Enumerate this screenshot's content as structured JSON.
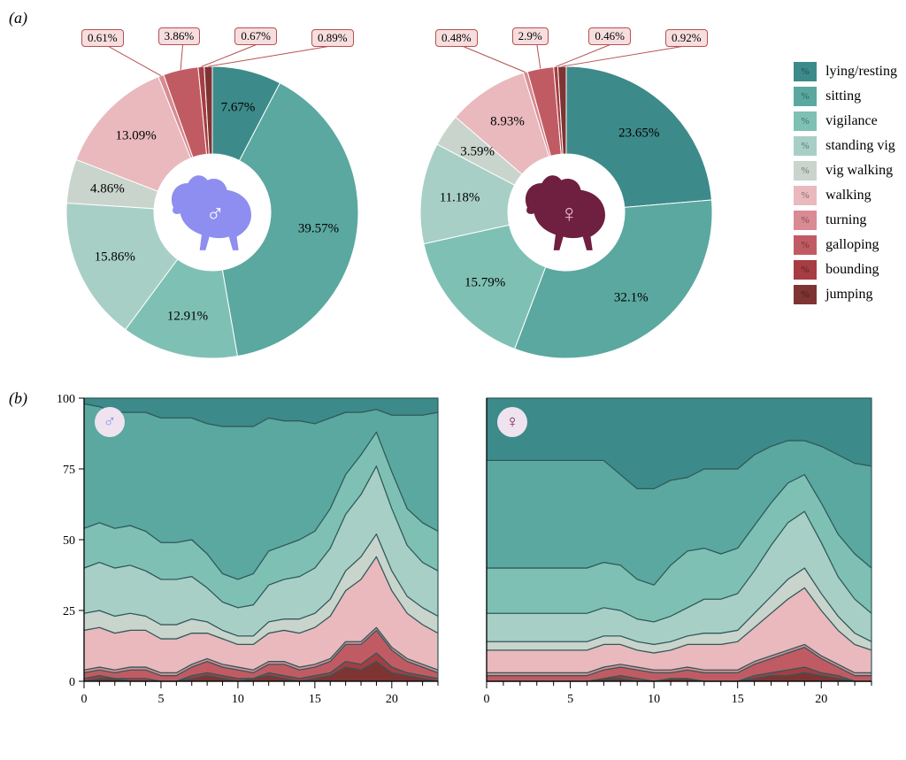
{
  "panel_labels": {
    "a": "(a)",
    "b": "(b)"
  },
  "colors": {
    "lying_resting": "#3d8a8a",
    "sitting": "#5aa8a0",
    "vigilance": "#7fc0b5",
    "standing_vig": "#a7cfc6",
    "vig_walking": "#c9d4cd",
    "walking": "#e9b9bd",
    "turning": "#d98a93",
    "galloping": "#c15b63",
    "bounding": "#a63d42",
    "jumping": "#7e3433",
    "stroke": "#2f5a5a",
    "callout_bg": "#f7dede",
    "callout_border": "#b85050",
    "male_icon": "#8e8ef0",
    "female_icon": "#6f1f3f",
    "badge_bg": "#efe3ef",
    "grid": "#555555",
    "bg": "#ffffff"
  },
  "legend": [
    {
      "key": "lying_resting",
      "label": "lying/resting"
    },
    {
      "key": "sitting",
      "label": "sitting"
    },
    {
      "key": "vigilance",
      "label": "vigilance"
    },
    {
      "key": "standing_vig",
      "label": "standing vig"
    },
    {
      "key": "vig_walking",
      "label": "vig walking"
    },
    {
      "key": "walking",
      "label": "walking"
    },
    {
      "key": "turning",
      "label": "turning"
    },
    {
      "key": "galloping",
      "label": "galloping"
    },
    {
      "key": "bounding",
      "label": "bounding"
    },
    {
      "key": "jumping",
      "label": "jumping"
    }
  ],
  "donuts": {
    "type": "donut",
    "inner_radius_ratio": 0.4,
    "start_angle_deg": -90,
    "direction": "clockwise",
    "label_fontsize": 15,
    "callout_fontsize": 13,
    "male": {
      "center_icon": "male",
      "slices": [
        {
          "key": "lying_resting",
          "value": 7.67,
          "label": "7.67%",
          "mode": "inner"
        },
        {
          "key": "sitting",
          "value": 39.57,
          "label": "39.57%",
          "mode": "inner"
        },
        {
          "key": "vigilance",
          "value": 12.91,
          "label": "12.91%",
          "mode": "inner"
        },
        {
          "key": "standing_vig",
          "value": 15.86,
          "label": "15.86%",
          "mode": "inner"
        },
        {
          "key": "vig_walking",
          "value": 4.86,
          "label": "4.86%",
          "mode": "inner"
        },
        {
          "key": "walking",
          "value": 13.09,
          "label": "13.09%",
          "mode": "inner"
        },
        {
          "key": "turning",
          "value": 0.61,
          "label": "0.61%",
          "mode": "callout"
        },
        {
          "key": "galloping",
          "value": 3.86,
          "label": "3.86%",
          "mode": "callout"
        },
        {
          "key": "bounding",
          "value": 0.67,
          "label": "0.67%",
          "mode": "callout"
        },
        {
          "key": "jumping",
          "value": 0.89,
          "label": "0.89%",
          "mode": "callout"
        }
      ]
    },
    "female": {
      "center_icon": "female",
      "slices": [
        {
          "key": "lying_resting",
          "value": 23.65,
          "label": "23.65%",
          "mode": "inner"
        },
        {
          "key": "sitting",
          "value": 32.1,
          "label": "32.1%",
          "mode": "inner"
        },
        {
          "key": "vigilance",
          "value": 15.79,
          "label": "15.79%",
          "mode": "inner"
        },
        {
          "key": "standing_vig",
          "value": 11.18,
          "label": "11.18%",
          "mode": "inner"
        },
        {
          "key": "vig_walking",
          "value": 3.59,
          "label": "3.59%",
          "mode": "inner"
        },
        {
          "key": "walking",
          "value": 8.93,
          "label": "8.93%",
          "mode": "inner"
        },
        {
          "key": "turning",
          "value": 0.48,
          "label": "0.48%",
          "mode": "callout"
        },
        {
          "key": "galloping",
          "value": 2.9,
          "label": "2.9%",
          "mode": "callout"
        },
        {
          "key": "bounding",
          "value": 0.46,
          "label": "0.46%",
          "mode": "callout"
        },
        {
          "key": "jumping",
          "value": 0.92,
          "label": "0.92%",
          "mode": "callout"
        }
      ]
    }
  },
  "areas": {
    "type": "stacked_area_100",
    "xlim": [
      0,
      23
    ],
    "ylim": [
      0,
      100
    ],
    "xtick_major": [
      0,
      5,
      10,
      15,
      20
    ],
    "xtick_minor_step": 1,
    "ytick_major": [
      0,
      25,
      50,
      75,
      100
    ],
    "label_fontsize": 14,
    "stroke_width": 1.2,
    "order_bottom_to_top": [
      "jumping",
      "bounding",
      "galloping",
      "turning",
      "walking",
      "vig_walking",
      "standing_vig",
      "vigilance",
      "sitting",
      "lying_resting"
    ],
    "x": [
      0,
      1,
      2,
      3,
      4,
      5,
      6,
      7,
      8,
      9,
      10,
      11,
      12,
      13,
      14,
      15,
      16,
      17,
      18,
      19,
      20,
      21,
      22,
      23
    ],
    "male": {
      "jumping": [
        0,
        1,
        1,
        0,
        0,
        0,
        0,
        1,
        2,
        1,
        0,
        1,
        2,
        1,
        0,
        1,
        2,
        5,
        4,
        7,
        3,
        2,
        1,
        0
      ],
      "bounding": [
        1,
        1,
        0,
        1,
        1,
        0,
        0,
        1,
        1,
        1,
        1,
        0,
        1,
        1,
        1,
        1,
        1,
        2,
        2,
        3,
        2,
        1,
        1,
        1
      ],
      "galloping": [
        2,
        2,
        2,
        3,
        3,
        2,
        2,
        3,
        4,
        3,
        3,
        2,
        3,
        4,
        3,
        3,
        4,
        6,
        7,
        8,
        6,
        4,
        3,
        2
      ],
      "turning": [
        1,
        1,
        1,
        1,
        1,
        1,
        1,
        1,
        1,
        1,
        1,
        1,
        1,
        1,
        1,
        1,
        1,
        1,
        1,
        1,
        1,
        1,
        1,
        1
      ],
      "walking": [
        14,
        14,
        13,
        13,
        13,
        12,
        12,
        11,
        9,
        9,
        8,
        9,
        10,
        11,
        12,
        13,
        15,
        18,
        22,
        25,
        20,
        16,
        14,
        13
      ],
      "vig_walking": [
        6,
        6,
        6,
        6,
        5,
        5,
        5,
        5,
        4,
        3,
        3,
        3,
        4,
        4,
        5,
        5,
        6,
        7,
        8,
        8,
        7,
        6,
        6,
        6
      ],
      "standing_vig": [
        16,
        17,
        17,
        17,
        16,
        16,
        16,
        15,
        12,
        10,
        10,
        11,
        13,
        14,
        15,
        16,
        18,
        20,
        22,
        24,
        22,
        18,
        16,
        16
      ],
      "vigilance": [
        14,
        14,
        14,
        14,
        14,
        13,
        13,
        13,
        12,
        10,
        10,
        11,
        12,
        12,
        13,
        13,
        14,
        14,
        14,
        12,
        13,
        13,
        14,
        14
      ],
      "sitting": [
        44,
        41,
        41,
        40,
        42,
        44,
        44,
        43,
        46,
        52,
        54,
        52,
        47,
        44,
        42,
        38,
        32,
        22,
        15,
        8,
        20,
        33,
        38,
        42
      ],
      "lying_resting": [
        2,
        3,
        5,
        5,
        5,
        7,
        7,
        7,
        9,
        10,
        10,
        10,
        7,
        8,
        8,
        9,
        7,
        5,
        5,
        4,
        6,
        6,
        6,
        5
      ]
    },
    "female": {
      "jumping": [
        0,
        0,
        0,
        0,
        0,
        0,
        0,
        1,
        1,
        0,
        0,
        1,
        1,
        0,
        0,
        0,
        1,
        2,
        2,
        3,
        2,
        1,
        0,
        0
      ],
      "bounding": [
        0,
        0,
        0,
        0,
        0,
        0,
        0,
        0,
        1,
        1,
        0,
        0,
        0,
        0,
        0,
        0,
        1,
        1,
        2,
        2,
        1,
        1,
        0,
        0
      ],
      "galloping": [
        2,
        2,
        2,
        2,
        2,
        2,
        2,
        3,
        3,
        3,
        3,
        2,
        3,
        3,
        3,
        3,
        4,
        5,
        6,
        7,
        5,
        3,
        2,
        2
      ],
      "turning": [
        1,
        1,
        1,
        1,
        1,
        1,
        1,
        1,
        1,
        1,
        1,
        1,
        1,
        1,
        1,
        1,
        1,
        1,
        1,
        1,
        1,
        1,
        1,
        1
      ],
      "walking": [
        8,
        8,
        8,
        8,
        8,
        8,
        8,
        8,
        7,
        6,
        6,
        7,
        8,
        9,
        9,
        10,
        12,
        15,
        18,
        20,
        16,
        12,
        10,
        8
      ],
      "vig_walking": [
        3,
        3,
        3,
        3,
        3,
        3,
        3,
        3,
        3,
        3,
        3,
        3,
        3,
        4,
        4,
        4,
        5,
        6,
        7,
        7,
        6,
        5,
        4,
        3
      ],
      "standing_vig": [
        10,
        10,
        10,
        10,
        10,
        10,
        10,
        10,
        9,
        8,
        8,
        9,
        10,
        12,
        12,
        13,
        15,
        18,
        20,
        20,
        18,
        14,
        12,
        10
      ],
      "vigilance": [
        16,
        16,
        16,
        16,
        16,
        16,
        16,
        16,
        16,
        14,
        13,
        18,
        20,
        18,
        16,
        16,
        16,
        15,
        14,
        13,
        14,
        15,
        16,
        16
      ],
      "sitting": [
        38,
        38,
        38,
        38,
        38,
        38,
        38,
        36,
        32,
        32,
        34,
        30,
        26,
        28,
        30,
        28,
        25,
        20,
        15,
        12,
        20,
        28,
        32,
        36
      ],
      "lying_resting": [
        22,
        22,
        22,
        22,
        22,
        22,
        22,
        22,
        27,
        32,
        32,
        29,
        28,
        25,
        25,
        25,
        20,
        17,
        15,
        15,
        17,
        20,
        23,
        24
      ]
    }
  }
}
